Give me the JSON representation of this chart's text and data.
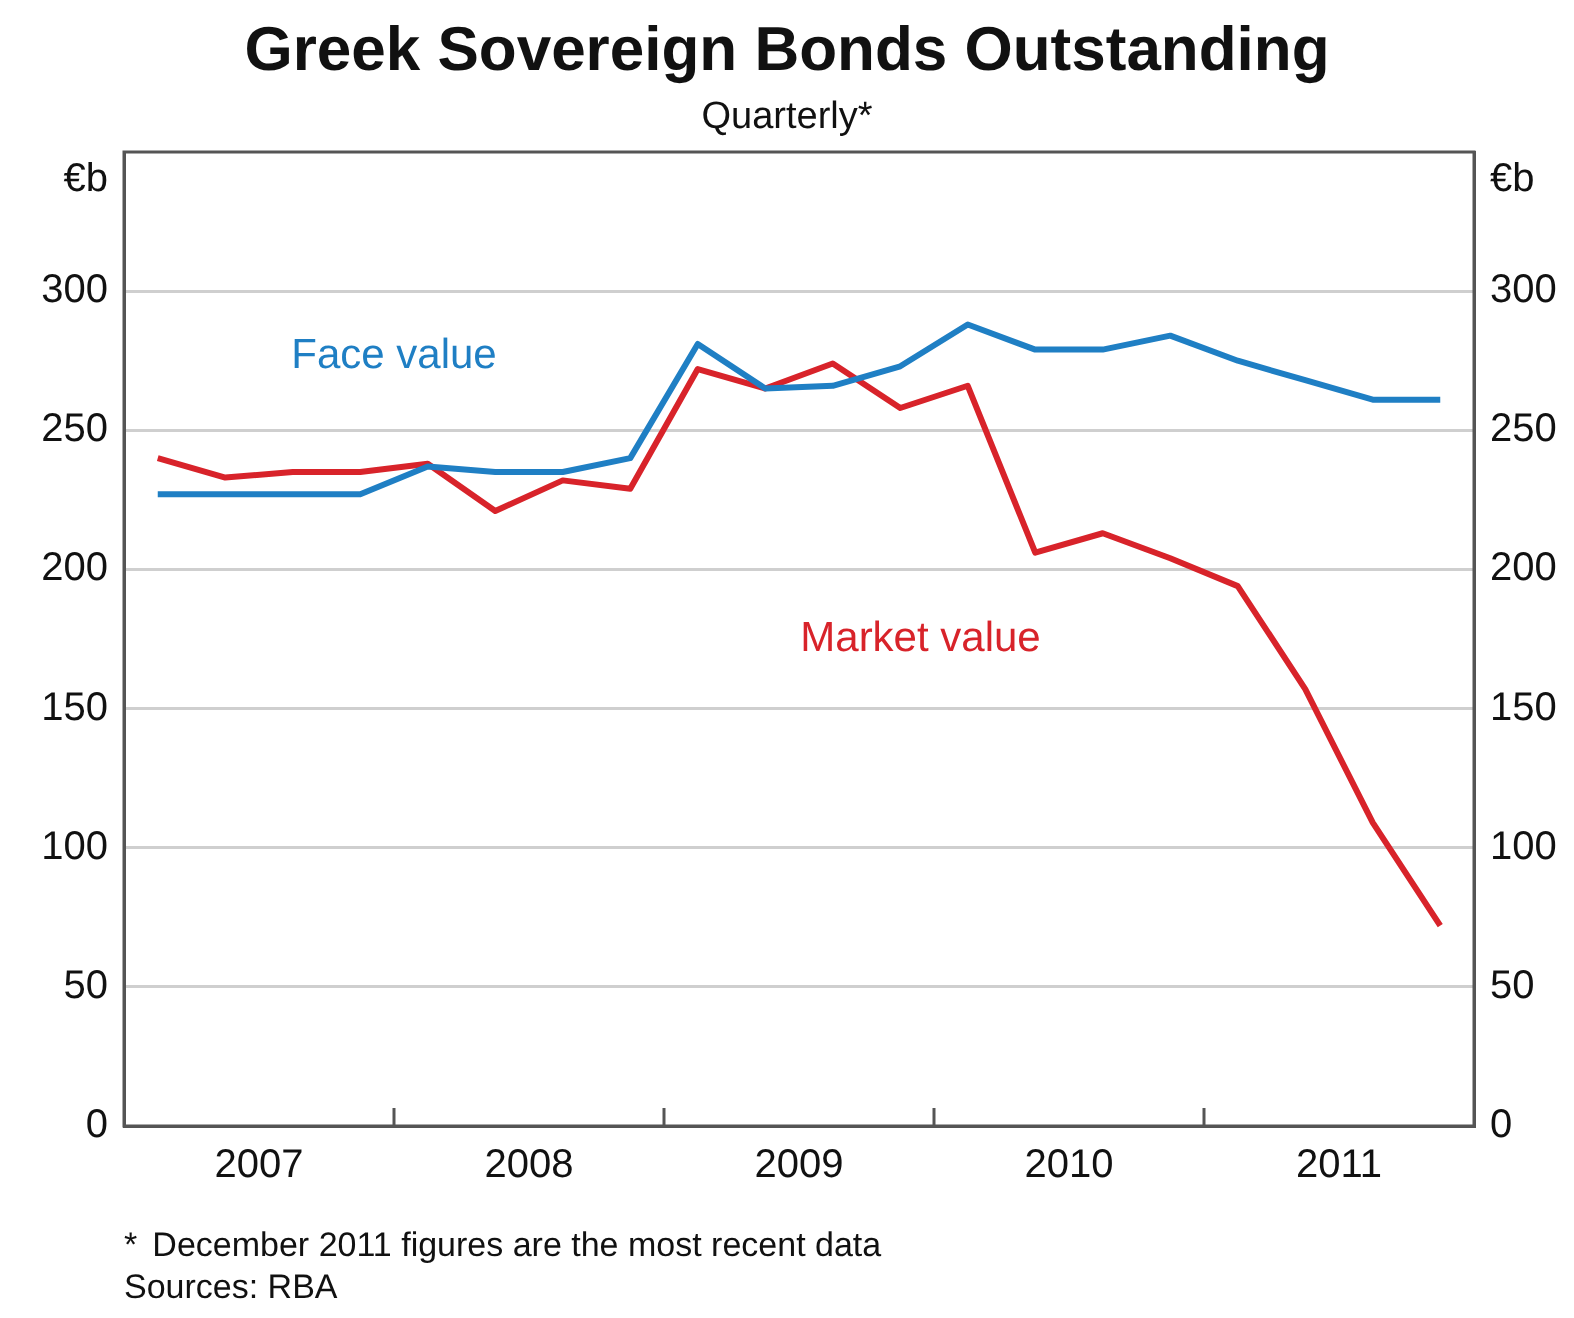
{
  "chart_data": {
    "type": "line",
    "title": "Greek Sovereign Bonds Outstanding",
    "subtitle": "Quarterly*",
    "ylabel": "€b",
    "y2label": "€b",
    "x": [
      2007.125,
      2007.375,
      2007.625,
      2007.875,
      2008.125,
      2008.375,
      2008.625,
      2008.875,
      2009.125,
      2009.375,
      2009.625,
      2009.875,
      2010.125,
      2010.375,
      2010.625,
      2010.875,
      2011.125,
      2011.375,
      2011.625,
      2011.875
    ],
    "xlim": [
      2007,
      2012
    ],
    "xticks": [
      {
        "value": 2007.5,
        "label": "2007"
      },
      {
        "value": 2008,
        "label": null
      },
      {
        "value": 2008.5,
        "label": "2008"
      },
      {
        "value": 2009,
        "label": null
      },
      {
        "value": 2009.5,
        "label": "2009"
      },
      {
        "value": 2010,
        "label": null
      },
      {
        "value": 2010.5,
        "label": "2010"
      },
      {
        "value": 2011,
        "label": null
      },
      {
        "value": 2011.5,
        "label": "2011"
      }
    ],
    "ylim": [
      0,
      350
    ],
    "yticks": [
      0,
      50,
      100,
      150,
      200,
      250,
      300
    ],
    "y2lim": [
      0,
      350
    ],
    "y2ticks": [
      0,
      50,
      100,
      150,
      200,
      250,
      300
    ],
    "grid": "y",
    "legend": false,
    "line_style": "solid",
    "marker": "none",
    "series": [
      {
        "name": "Face value",
        "color": "#1f7fc4",
        "values": [
          227,
          227,
          227,
          227,
          237,
          235,
          235,
          240,
          281,
          265,
          266,
          273,
          288,
          279,
          279,
          284,
          275,
          268,
          261,
          261
        ]
      },
      {
        "name": "Market value",
        "color": "#d8232a",
        "values": [
          240,
          233,
          235,
          235,
          238,
          221,
          232,
          229,
          272,
          265,
          274,
          258,
          266,
          206,
          213,
          204,
          194,
          157,
          109,
          72
        ]
      }
    ],
    "annotations": [
      "*\tDecember 2011 figures are the most recent data",
      "Sources: RBA"
    ]
  }
}
